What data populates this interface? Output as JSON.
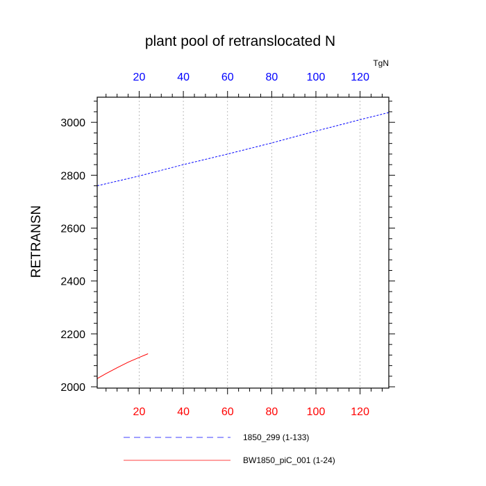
{
  "chart_data": {
    "type": "line",
    "title": "plant pool of retranslocated N",
    "ylabel": "RETRANSN",
    "top_axis_unit": "TgN",
    "xlim": [
      1,
      133
    ],
    "ylim": [
      1995,
      3095
    ],
    "yticks": [
      2000,
      2200,
      2400,
      2600,
      2800,
      3000
    ],
    "xticks": [
      20,
      40,
      60,
      80,
      100,
      120
    ],
    "grid": "vertical dotted at x ticks",
    "legend_position": "bottom",
    "series": [
      {
        "name": "1850_299 (1-133)",
        "axis": "top",
        "color": "#0000ff",
        "style": "dashed",
        "x": [
          1,
          20,
          40,
          60,
          80,
          100,
          120,
          133
        ],
        "y": [
          2760,
          2797,
          2840,
          2880,
          2922,
          2967,
          3010,
          3037
        ]
      },
      {
        "name": "BW1850_piC_001 (1-24)",
        "axis": "bottom",
        "color": "#ff0000",
        "style": "solid",
        "x": [
          1,
          5,
          10,
          15,
          20,
          24
        ],
        "y": [
          2031,
          2050,
          2072,
          2093,
          2111,
          2125
        ]
      }
    ]
  }
}
